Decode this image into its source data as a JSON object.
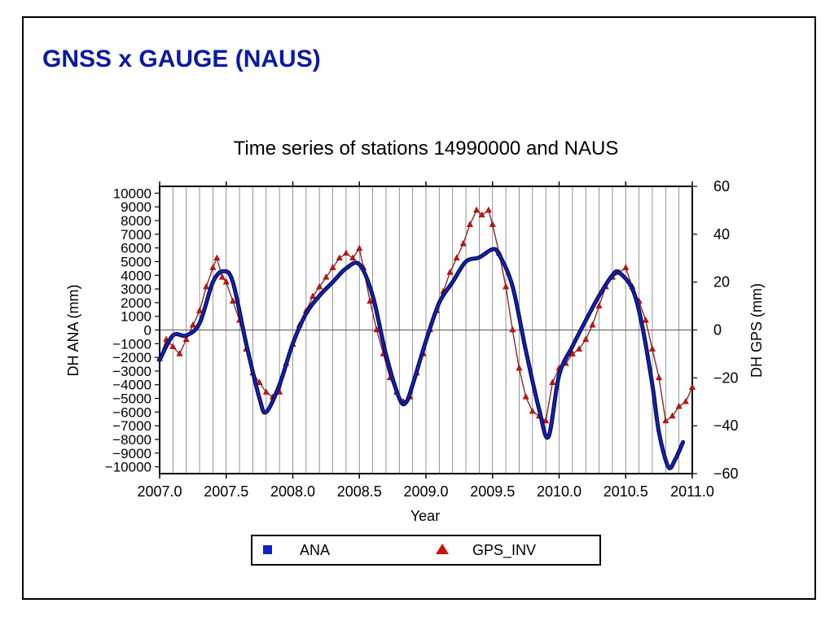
{
  "slide": {
    "title": "GNSS x GAUGE (NAUS)"
  },
  "chart_data": {
    "type": "line",
    "title": "Time series of stations 14990000 and NAUS",
    "xlabel": "Year",
    "ylabel_left": "DH ANA (mm)",
    "ylabel_right": "DH GPS (mm)",
    "xlim": [
      2007.0,
      2011.0
    ],
    "ylim_left": [
      -10500,
      10500
    ],
    "ylim_right": [
      -60,
      60
    ],
    "x_ticks": [
      2007.0,
      2007.5,
      2008.0,
      2008.5,
      2009.0,
      2009.5,
      2010.0,
      2010.5,
      2011.0
    ],
    "x_tick_labels": [
      "2007.0",
      "2007.5",
      "2008.0",
      "2008.5",
      "2009.0",
      "2009.5",
      "2010.0",
      "2010.5",
      "2011.0"
    ],
    "y_left_ticks": [
      10000,
      9000,
      8000,
      7000,
      6000,
      5000,
      4000,
      3000,
      2000,
      1000,
      0,
      -1000,
      -2000,
      -3000,
      -4000,
      -5000,
      -6000,
      -7000,
      -8000,
      -9000,
      -10000
    ],
    "y_left_tick_labels": [
      "10000",
      "9000",
      "8000",
      "7000",
      "6000",
      "5000",
      "4000",
      "3000",
      "2000",
      "1000",
      "0",
      "−1000",
      "−2000",
      "−3000",
      "−4000",
      "−5000",
      "−6000",
      "−7000",
      "−8000",
      "−9000",
      "−10000"
    ],
    "y_right_ticks": [
      60,
      40,
      20,
      0,
      -20,
      -40,
      -60
    ],
    "y_right_tick_labels": [
      "60",
      "40",
      "20",
      "0",
      "−20",
      "−40",
      "−60"
    ],
    "grid": "vertical",
    "legend_position": "bottom-center",
    "series": [
      {
        "name": "ANA",
        "axis": "left",
        "color": "#1020c8",
        "marker": "square",
        "x": [
          2007.0,
          2007.1,
          2007.2,
          2007.3,
          2007.4,
          2007.48,
          2007.55,
          2007.65,
          2007.75,
          2007.8,
          2007.9,
          2008.0,
          2008.1,
          2008.2,
          2008.3,
          2008.4,
          2008.5,
          2008.6,
          2008.7,
          2008.8,
          2008.85,
          2008.9,
          2009.0,
          2009.1,
          2009.2,
          2009.3,
          2009.4,
          2009.5,
          2009.55,
          2009.65,
          2009.75,
          2009.85,
          2009.92,
          2010.0,
          2010.1,
          2010.2,
          2010.3,
          2010.4,
          2010.45,
          2010.55,
          2010.62,
          2010.7,
          2010.75,
          2010.82,
          2010.87,
          2010.93
        ],
        "values": [
          -2200,
          -400,
          -400,
          500,
          3500,
          4300,
          3500,
          -1000,
          -5000,
          -6000,
          -4000,
          -1000,
          1200,
          2500,
          3500,
          4500,
          4800,
          2500,
          -1800,
          -5000,
          -5300,
          -4000,
          -800,
          2000,
          3500,
          5000,
          5300,
          5900,
          5500,
          3200,
          -1500,
          -5800,
          -7800,
          -3300,
          -1200,
          700,
          2500,
          4000,
          4200,
          3000,
          500,
          -4000,
          -7500,
          -10000,
          -9500,
          -8200
        ]
      },
      {
        "name": "GPS_INV",
        "axis": "right",
        "color": "#d01010",
        "marker": "triangle",
        "x": [
          2007.0,
          2007.05,
          2007.1,
          2007.15,
          2007.2,
          2007.25,
          2007.3,
          2007.35,
          2007.4,
          2007.43,
          2007.47,
          2007.5,
          2007.55,
          2007.6,
          2007.65,
          2007.7,
          2007.75,
          2007.8,
          2007.85,
          2007.9,
          2007.95,
          2008.0,
          2008.05,
          2008.1,
          2008.15,
          2008.2,
          2008.25,
          2008.3,
          2008.35,
          2008.4,
          2008.45,
          2008.5,
          2008.53,
          2008.58,
          2008.63,
          2008.68,
          2008.73,
          2008.78,
          2008.83,
          2008.88,
          2008.93,
          2008.98,
          2009.03,
          2009.08,
          2009.13,
          2009.18,
          2009.23,
          2009.28,
          2009.33,
          2009.38,
          2009.42,
          2009.47,
          2009.5,
          2009.55,
          2009.6,
          2009.65,
          2009.7,
          2009.75,
          2009.8,
          2009.85,
          2009.9,
          2009.95,
          2010.0,
          2010.05,
          2010.1,
          2010.15,
          2010.2,
          2010.25,
          2010.3,
          2010.35,
          2010.4,
          2010.45,
          2010.5,
          2010.55,
          2010.6,
          2010.65,
          2010.7,
          2010.75,
          2010.8,
          2010.85,
          2010.9,
          2010.95,
          2011.0
        ],
        "values": [
          -12,
          -4,
          -7,
          -10,
          -4,
          2,
          8,
          18,
          26,
          30,
          22,
          20,
          12,
          4,
          -8,
          -18,
          -22,
          -26,
          -28,
          -26,
          -14,
          -6,
          2,
          8,
          14,
          18,
          22,
          26,
          30,
          32,
          30,
          34,
          26,
          12,
          0,
          -10,
          -20,
          -26,
          -30,
          -28,
          -18,
          -10,
          0,
          8,
          16,
          24,
          30,
          36,
          44,
          50,
          48,
          50,
          44,
          32,
          18,
          0,
          -16,
          -28,
          -34,
          -36,
          -38,
          -22,
          -16,
          -14,
          -10,
          -8,
          -4,
          2,
          10,
          18,
          22,
          24,
          26,
          18,
          12,
          4,
          -8,
          -20,
          -38,
          -36,
          -32,
          -30,
          -24
        ]
      }
    ]
  }
}
